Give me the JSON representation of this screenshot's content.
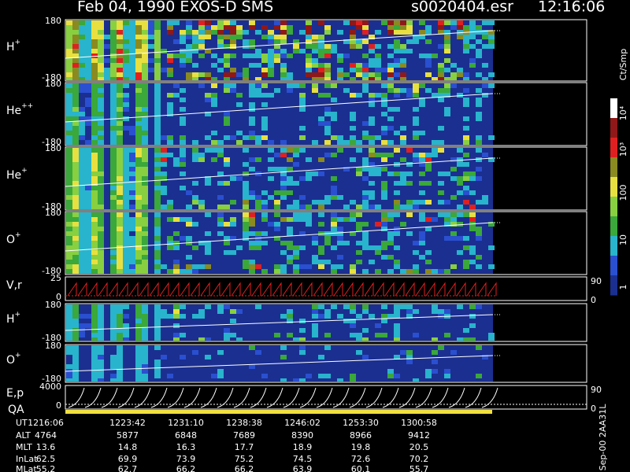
{
  "header": {
    "title": "Feb 04, 1990   EXOS-D SMS",
    "file": "s0020404.esr",
    "time": "12:16:06"
  },
  "panels": [
    {
      "label": "H",
      "charge": "+",
      "ticks": [
        180,
        -180
      ]
    },
    {
      "label": "He",
      "charge": "++",
      "ticks": [
        180,
        -180
      ]
    },
    {
      "label": "He",
      "charge": "+",
      "ticks": [
        180,
        -180
      ]
    },
    {
      "label": "O",
      "charge": "+",
      "ticks": [
        180,
        -180
      ]
    },
    {
      "label": "V,r",
      "ticks": [
        25,
        0
      ],
      "right_ticks": [
        90,
        0
      ]
    },
    {
      "label": "H",
      "charge": "+",
      "ticks": [
        180,
        -180
      ]
    },
    {
      "label": "O",
      "charge": "+",
      "ticks": [
        180,
        -180
      ]
    },
    {
      "label": "E,p",
      "sublabel": "QA",
      "ticks": [
        4000,
        0
      ],
      "right_ticks": [
        90,
        0
      ]
    }
  ],
  "colorbar": {
    "unit": "Ct/Smp",
    "labels": [
      "10⁴",
      "10³",
      "100",
      "10",
      "1"
    ]
  },
  "table": {
    "rows": [
      {
        "name": "UT",
        "cells": [
          "1216:06",
          "1223:42",
          "1231:10",
          "1238:38",
          "1246:02",
          "1253:30",
          "1300:58"
        ]
      },
      {
        "name": "ALT",
        "cells": [
          4764,
          5877,
          6848,
          7689,
          8390,
          8966,
          9412
        ]
      },
      {
        "name": "MLT",
        "cells": [
          13.6,
          14.8,
          16.3,
          17.7,
          18.9,
          19.8,
          20.5
        ]
      },
      {
        "name": "InLat",
        "cells": [
          62.5,
          69.9,
          73.9,
          75.2,
          74.5,
          72.6,
          70.2
        ]
      },
      {
        "name": "MLat",
        "cells": [
          55.2,
          62.7,
          66.2,
          66.2,
          63.9,
          60.1,
          55.7
        ]
      }
    ]
  },
  "footer": "Sep-00 2AA31L"
}
